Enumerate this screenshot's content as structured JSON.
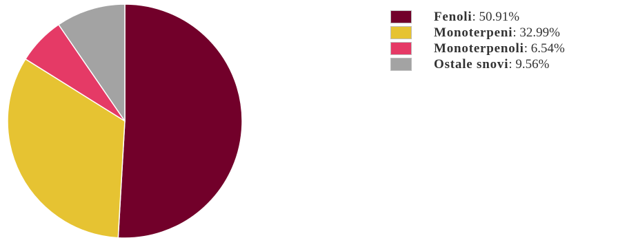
{
  "chart_data": {
    "type": "pie",
    "title": "",
    "series": [
      {
        "name": "Fenoli",
        "value": 50.91,
        "display": "50.91%",
        "color": "#72002A"
      },
      {
        "name": "Monoterpeni",
        "value": 32.99,
        "display": "32.99%",
        "color": "#E6C332"
      },
      {
        "name": "Monoterpenoli",
        "value": 6.54,
        "display": "6.54%",
        "color": "#E53A66"
      },
      {
        "name": "Ostale snovi",
        "value": 9.56,
        "display": "9.56%",
        "color": "#A3A3A3"
      }
    ],
    "legend_position": "right",
    "slice_border_color": "#ffffff"
  }
}
